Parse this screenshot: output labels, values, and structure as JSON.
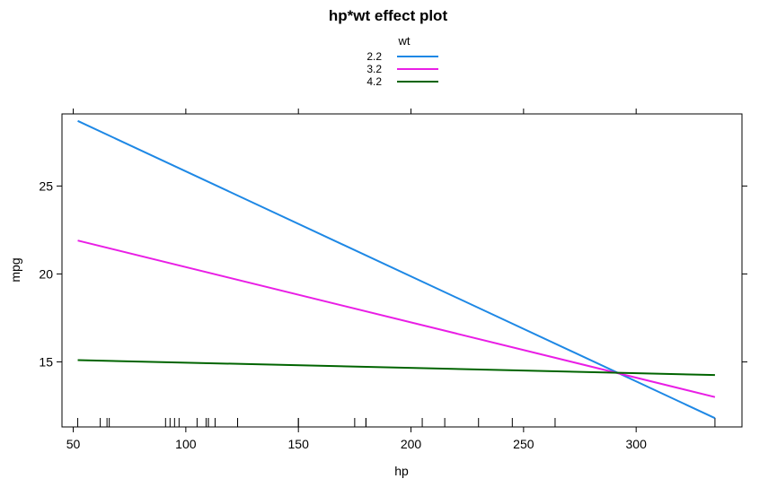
{
  "chart_data": {
    "type": "line",
    "title": "hp*wt effect plot",
    "xlabel": "hp",
    "ylabel": "mpg",
    "xlim": [
      45,
      347
    ],
    "ylim": [
      11.3,
      29.1
    ],
    "xticks": [
      50,
      100,
      150,
      200,
      250,
      300
    ],
    "yticks": [
      15,
      20,
      25
    ],
    "legend": {
      "title": "wt",
      "placement": "top-center"
    },
    "series": [
      {
        "name": "2.2",
        "color": "#1E88E5",
        "x": [
          52,
          335
        ],
        "values": [
          28.7,
          11.8
        ]
      },
      {
        "name": "3.2",
        "color": "#E91EE5",
        "x": [
          52,
          335
        ],
        "values": [
          21.9,
          13.0
        ]
      },
      {
        "name": "4.2",
        "color": "#006400",
        "x": [
          52,
          335
        ],
        "values": [
          15.1,
          14.25
        ]
      }
    ],
    "rug_x": [
      52,
      62,
      65,
      66,
      91,
      93,
      95,
      97,
      105,
      109,
      110,
      110,
      113,
      123,
      123,
      150,
      150,
      175,
      180,
      180,
      205,
      215,
      230,
      245,
      264,
      335
    ]
  }
}
